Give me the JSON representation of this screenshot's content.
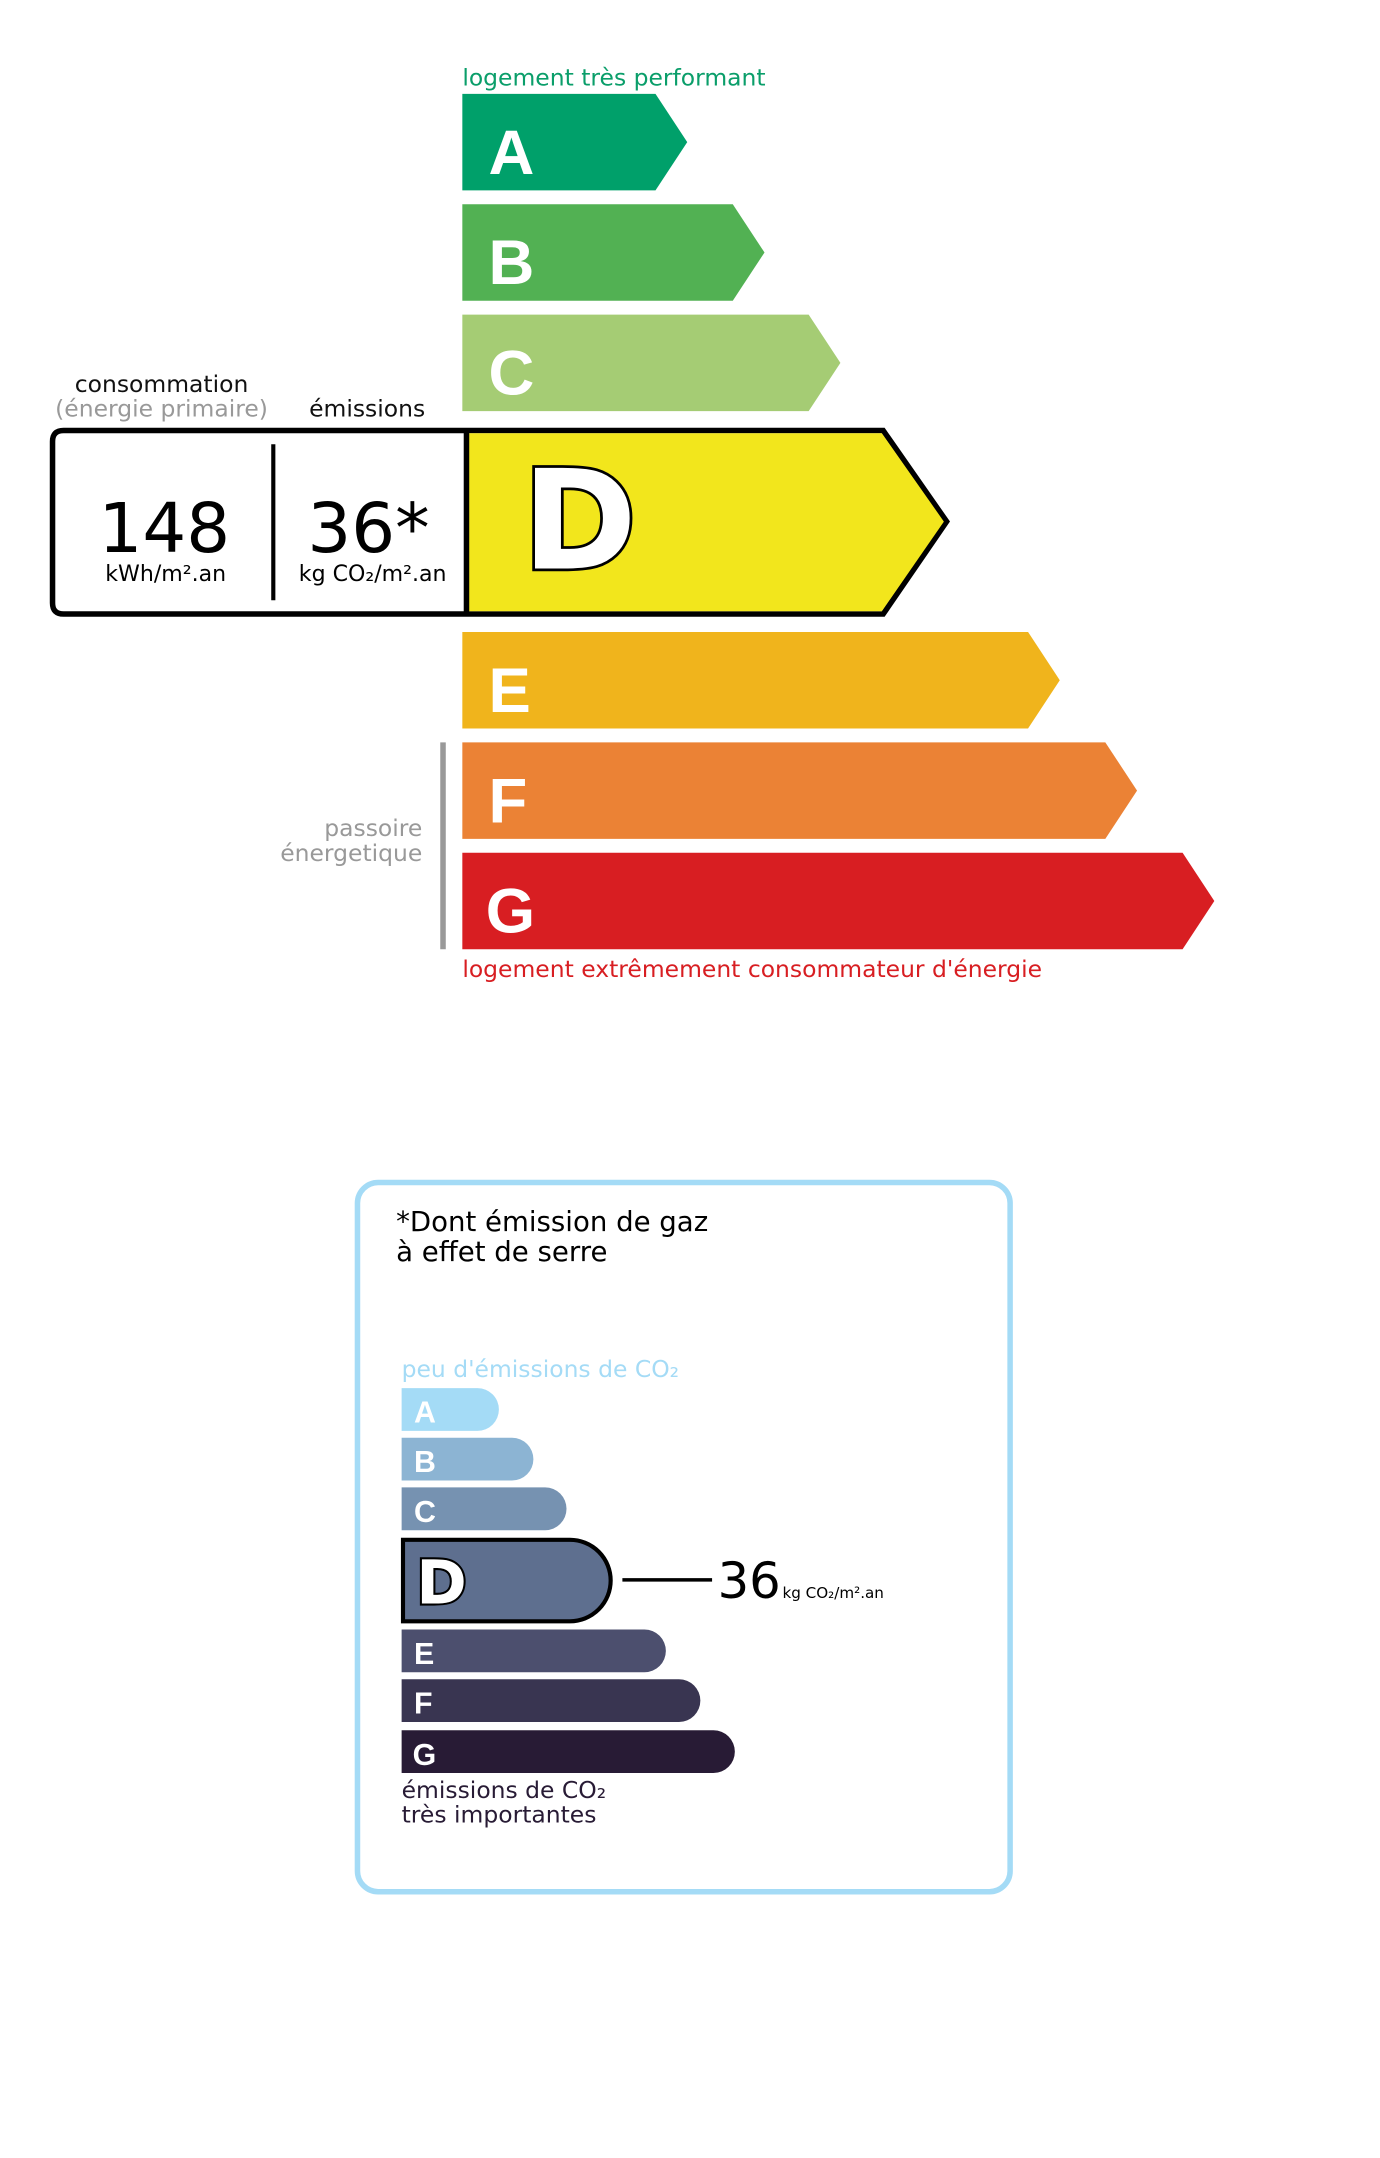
{
  "energy": {
    "top_label": "logement très performant",
    "bottom_label": "logement extrêmement consommateur d'énergie",
    "passoire_line1": "passoire",
    "passoire_line2": "énergetique",
    "consumption_header": "consommation",
    "consumption_subheader": "(énergie primaire)",
    "emissions_header": "émissions",
    "consumption_value": "148",
    "consumption_unit": "kWh/m².an",
    "emissions_value": "36*",
    "emissions_unit": "kg CO₂/m².an",
    "current_class": "D",
    "classes": [
      {
        "letter": "A",
        "color": "#00a06a"
      },
      {
        "letter": "B",
        "color": "#52b153"
      },
      {
        "letter": "C",
        "color": "#a5cc74"
      },
      {
        "letter": "D",
        "color": "#f2e61c"
      },
      {
        "letter": "E",
        "color": "#f0b41c"
      },
      {
        "letter": "F",
        "color": "#eb8235"
      },
      {
        "letter": "G",
        "color": "#d81e22"
      }
    ]
  },
  "ghg": {
    "title_line1": "*Dont émission de gaz",
    "title_line2": "à effet de serre",
    "top_label": "peu d'émissions de CO₂",
    "bottom_line1": "émissions de CO₂",
    "bottom_line2": "très importantes",
    "value": "36",
    "unit": "kg CO₂/m².an",
    "current_class": "D",
    "classes": [
      {
        "letter": "A",
        "color": "#a4dbf6"
      },
      {
        "letter": "B",
        "color": "#8cb4d3"
      },
      {
        "letter": "C",
        "color": "#7692b1"
      },
      {
        "letter": "D",
        "color": "#5e6f8f"
      },
      {
        "letter": "E",
        "color": "#4c4f6e"
      },
      {
        "letter": "F",
        "color": "#393551"
      },
      {
        "letter": "G",
        "color": "#281b35"
      }
    ]
  }
}
